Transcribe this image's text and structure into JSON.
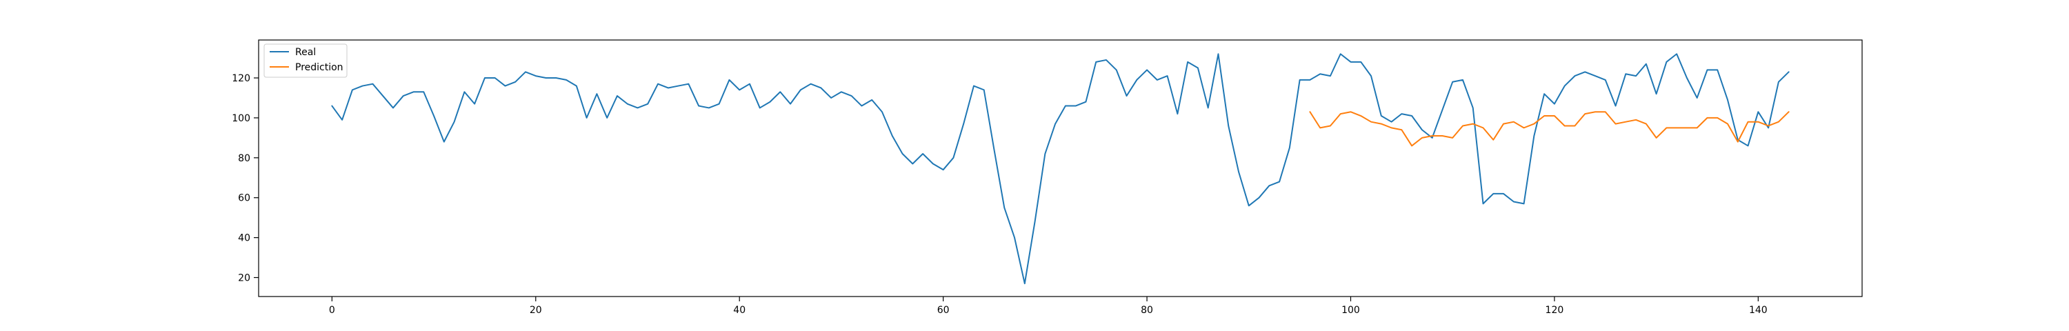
{
  "chart_data": {
    "type": "line",
    "title": "",
    "xlabel": "",
    "ylabel": "",
    "xlim": [
      -7.2,
      150.2
    ],
    "ylim": [
      10.5,
      139
    ],
    "x_ticks": [
      0,
      20,
      40,
      60,
      80,
      100,
      120,
      140
    ],
    "y_ticks": [
      20,
      40,
      60,
      80,
      100,
      120
    ],
    "grid": false,
    "legend_position": "upper-left",
    "series": [
      {
        "name": "Real",
        "color": "#1f77b4",
        "x_start": 0,
        "values": [
          106,
          99,
          114,
          116,
          117,
          111,
          105,
          111,
          113,
          113,
          101,
          88,
          98,
          113,
          107,
          120,
          120,
          116,
          118,
          123,
          121,
          120,
          120,
          119,
          116,
          100,
          112,
          100,
          111,
          107,
          105,
          107,
          117,
          115,
          116,
          117,
          106,
          105,
          107,
          119,
          114,
          117,
          105,
          108,
          113,
          107,
          114,
          117,
          115,
          110,
          113,
          111,
          106,
          109,
          103,
          91,
          82,
          77,
          82,
          77,
          74,
          80,
          97,
          116,
          114,
          84,
          55,
          40,
          17,
          48,
          82,
          97,
          106,
          106,
          108,
          128,
          129,
          124,
          111,
          119,
          124,
          119,
          121,
          102,
          128,
          125,
          105,
          132,
          96,
          73,
          56,
          60,
          66,
          68,
          85,
          119,
          119,
          122,
          121,
          132,
          128,
          128,
          121,
          101,
          98,
          102,
          101,
          94,
          90,
          104,
          118,
          119,
          105,
          57,
          62,
          62,
          58,
          57,
          91,
          112,
          107,
          116,
          121,
          123,
          121,
          119,
          106,
          122,
          121,
          127,
          112,
          128,
          132,
          120,
          110,
          124,
          124,
          109,
          89,
          86,
          103,
          95,
          118,
          123
        ]
      },
      {
        "name": "Prediction",
        "color": "#ff7f0e",
        "x_start": 96,
        "values": [
          103,
          95,
          96,
          102,
          103,
          101,
          98,
          97,
          95,
          94,
          86,
          90,
          91,
          91,
          90,
          96,
          97,
          95,
          89,
          97,
          98,
          95,
          97,
          101,
          101,
          96,
          96,
          102,
          103,
          103,
          97,
          98,
          99,
          97,
          90,
          95,
          95,
          95,
          95,
          100,
          100,
          97,
          88,
          98,
          98,
          96,
          98,
          103
        ]
      }
    ]
  }
}
